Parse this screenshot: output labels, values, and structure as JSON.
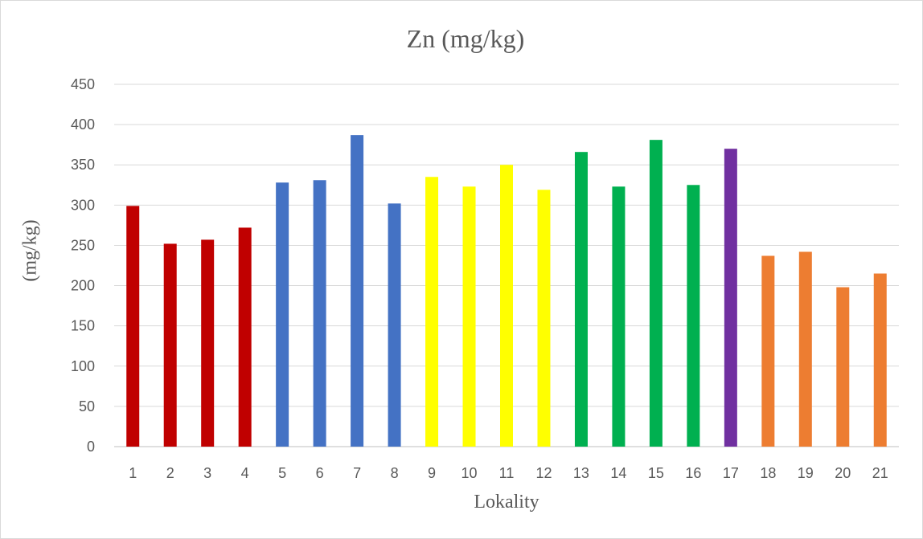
{
  "chart_data": {
    "type": "bar",
    "title": "Zn (mg/kg)",
    "xlabel": "Lokality",
    "ylabel": "(mg/kg)",
    "ylim": [
      0,
      450
    ],
    "yticks": [
      0,
      50,
      100,
      150,
      200,
      250,
      300,
      350,
      400,
      450
    ],
    "grid": true,
    "categories": [
      "1",
      "2",
      "3",
      "4",
      "5",
      "6",
      "7",
      "8",
      "9",
      "10",
      "11",
      "12",
      "13",
      "14",
      "15",
      "16",
      "17",
      "18",
      "19",
      "20",
      "21"
    ],
    "values": [
      299,
      252,
      257,
      272,
      328,
      331,
      387,
      302,
      335,
      323,
      350,
      319,
      366,
      323,
      381,
      325,
      370,
      237,
      242,
      198,
      215
    ],
    "colors": [
      "#c00000",
      "#c00000",
      "#c00000",
      "#c00000",
      "#4472c4",
      "#4472c4",
      "#4472c4",
      "#4472c4",
      "#ffff00",
      "#ffff00",
      "#ffff00",
      "#ffff00",
      "#00b050",
      "#00b050",
      "#00b050",
      "#00b050",
      "#7030a0",
      "#ed7d31",
      "#ed7d31",
      "#ed7d31",
      "#ed7d31"
    ],
    "gridline_color": "#d9d9d9",
    "axis_color": "#bfbfbf",
    "text_color": "#595959"
  }
}
